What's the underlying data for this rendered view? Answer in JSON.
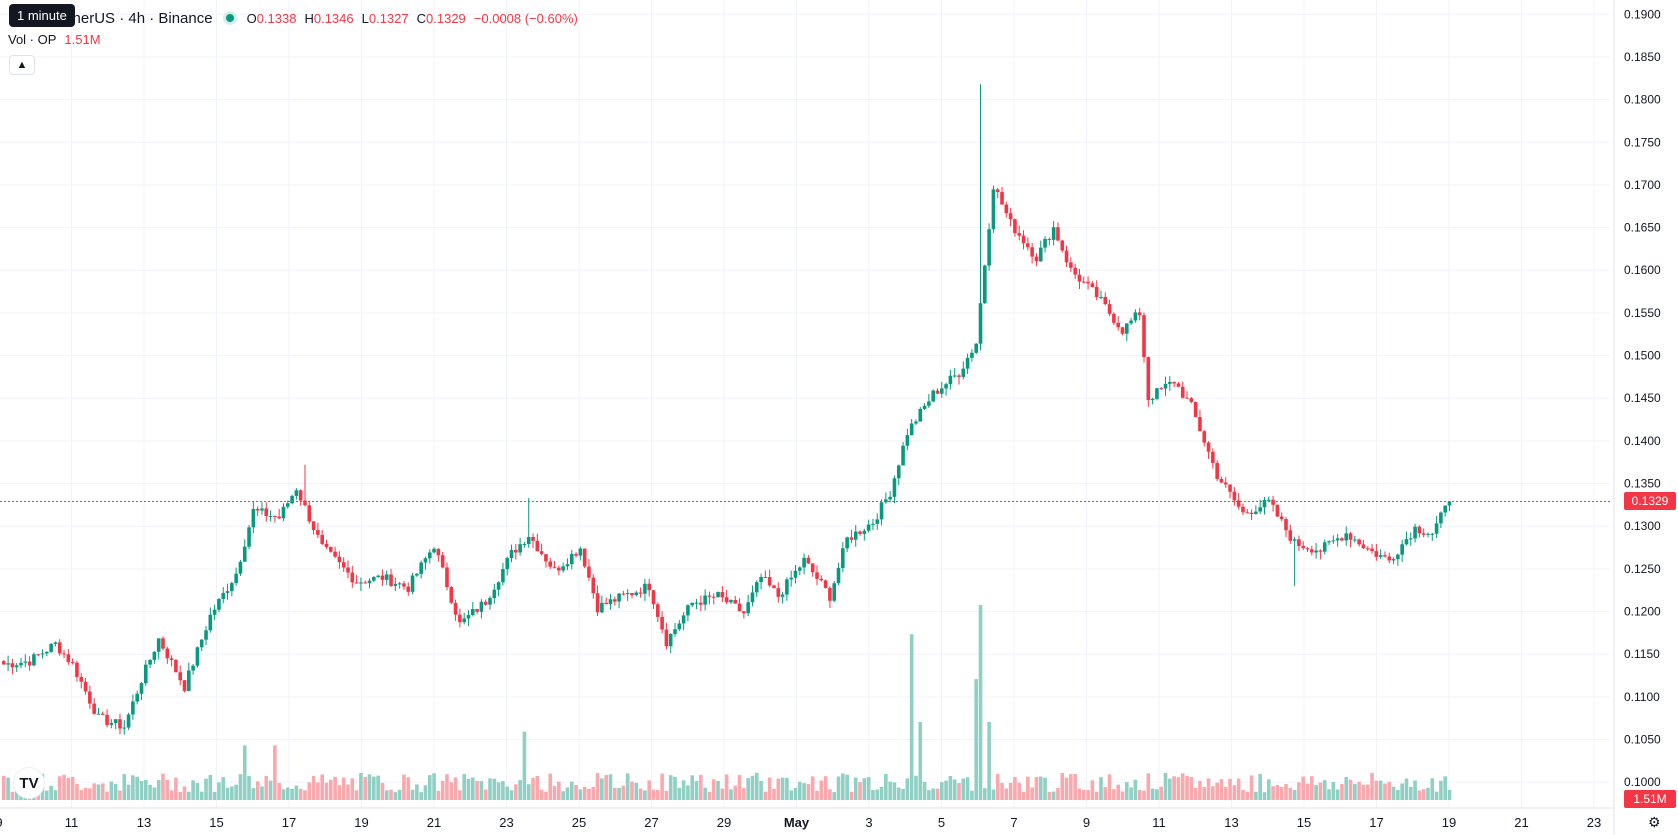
{
  "header": {
    "symbol": "etherUS · 4h · Binance",
    "tooltip": "1 minute",
    "ohlc": {
      "o_label": "O",
      "o": "0.1338",
      "h_label": "H",
      "h": "0.1346",
      "l_label": "L",
      "l": "0.1327",
      "c_label": "C",
      "c": "0.1329"
    },
    "change": "−0.0008 (−0.60%)",
    "vol_label": "Vol · OP",
    "vol_value": "1.51M",
    "collapse_icon": "chevron-up-icon"
  },
  "logo": "TV",
  "colors": {
    "up": "#089981",
    "down": "#f23645",
    "up_volume": "#8fcfc4",
    "down_volume": "#f7a9ae",
    "grid": "#f0f3fa"
  },
  "price_axis": {
    "ticks": [
      "0.1900",
      "0.1850",
      "0.1800",
      "0.1750",
      "0.1700",
      "0.1650",
      "0.1600",
      "0.1550",
      "0.1500",
      "0.1450",
      "0.1400",
      "0.1350",
      "0.1300",
      "0.1250",
      "0.1200",
      "0.1150",
      "0.1100",
      "0.1050",
      "0.1000"
    ],
    "last_price": "0.1329",
    "volume_tag": "1.51M"
  },
  "time_axis": {
    "labels": [
      "9",
      "11",
      "13",
      "15",
      "17",
      "19",
      "21",
      "23",
      "25",
      "27",
      "29",
      "May",
      "3",
      "5",
      "7",
      "9",
      "11",
      "13",
      "15",
      "17",
      "19",
      "21",
      "23"
    ]
  },
  "chart_data": {
    "type": "candlestick",
    "timeframe": "4h",
    "y_range": [
      0.0985,
      0.1905
    ],
    "price_points": [
      {
        "i": 0,
        "p": 0.1138
      },
      {
        "i": 6,
        "p": 0.1142
      },
      {
        "i": 12,
        "p": 0.1162
      },
      {
        "i": 16,
        "p": 0.1138
      },
      {
        "i": 22,
        "p": 0.1075
      },
      {
        "i": 28,
        "p": 0.1065
      },
      {
        "i": 32,
        "p": 0.112
      },
      {
        "i": 36,
        "p": 0.1168
      },
      {
        "i": 42,
        "p": 0.1112
      },
      {
        "i": 48,
        "p": 0.1195
      },
      {
        "i": 54,
        "p": 0.1245
      },
      {
        "i": 58,
        "p": 0.1318
      },
      {
        "i": 64,
        "p": 0.131
      },
      {
        "i": 68,
        "p": 0.1345
      },
      {
        "i": 74,
        "p": 0.1275
      },
      {
        "i": 82,
        "p": 0.1235
      },
      {
        "i": 88,
        "p": 0.124
      },
      {
        "i": 94,
        "p": 0.1228
      },
      {
        "i": 100,
        "p": 0.1278
      },
      {
        "i": 106,
        "p": 0.1185
      },
      {
        "i": 112,
        "p": 0.1212
      },
      {
        "i": 118,
        "p": 0.1268
      },
      {
        "i": 122,
        "p": 0.129
      },
      {
        "i": 128,
        "p": 0.1248
      },
      {
        "i": 134,
        "p": 0.1275
      },
      {
        "i": 138,
        "p": 0.1205
      },
      {
        "i": 144,
        "p": 0.1218
      },
      {
        "i": 150,
        "p": 0.123
      },
      {
        "i": 154,
        "p": 0.1165
      },
      {
        "i": 160,
        "p": 0.121
      },
      {
        "i": 166,
        "p": 0.1218
      },
      {
        "i": 172,
        "p": 0.1198
      },
      {
        "i": 176,
        "p": 0.124
      },
      {
        "i": 180,
        "p": 0.1218
      },
      {
        "i": 186,
        "p": 0.126
      },
      {
        "i": 192,
        "p": 0.1218
      },
      {
        "i": 196,
        "p": 0.1285
      },
      {
        "i": 202,
        "p": 0.1305
      },
      {
        "i": 206,
        "p": 0.134
      },
      {
        "i": 210,
        "p": 0.141
      },
      {
        "i": 216,
        "p": 0.1455
      },
      {
        "i": 222,
        "p": 0.148
      },
      {
        "i": 226,
        "p": 0.1515
      },
      {
        "i": 230,
        "p": 0.17
      },
      {
        "i": 234,
        "p": 0.1655
      },
      {
        "i": 240,
        "p": 0.1615
      },
      {
        "i": 244,
        "p": 0.165
      },
      {
        "i": 248,
        "p": 0.16
      },
      {
        "i": 254,
        "p": 0.157
      },
      {
        "i": 260,
        "p": 0.153
      },
      {
        "i": 264,
        "p": 0.155
      },
      {
        "i": 266,
        "p": 0.145
      },
      {
        "i": 272,
        "p": 0.147
      },
      {
        "i": 276,
        "p": 0.144
      },
      {
        "i": 282,
        "p": 0.136
      },
      {
        "i": 288,
        "p": 0.1315
      },
      {
        "i": 294,
        "p": 0.1328
      },
      {
        "i": 300,
        "p": 0.128
      },
      {
        "i": 306,
        "p": 0.1272
      },
      {
        "i": 312,
        "p": 0.1292
      },
      {
        "i": 318,
        "p": 0.127
      },
      {
        "i": 322,
        "p": 0.126
      },
      {
        "i": 328,
        "p": 0.1298
      },
      {
        "i": 332,
        "p": 0.1292
      },
      {
        "i": 336,
        "p": 0.1329
      }
    ],
    "volume_spikes": [
      {
        "i": 211,
        "v": 0.85
      },
      {
        "i": 213,
        "v": 0.4
      },
      {
        "i": 226,
        "v": 0.62
      },
      {
        "i": 227,
        "v": 1.0
      },
      {
        "i": 229,
        "v": 0.4
      },
      {
        "i": 121,
        "v": 0.35
      },
      {
        "i": 56,
        "v": 0.28
      },
      {
        "i": 63,
        "v": 0.28
      }
    ]
  }
}
